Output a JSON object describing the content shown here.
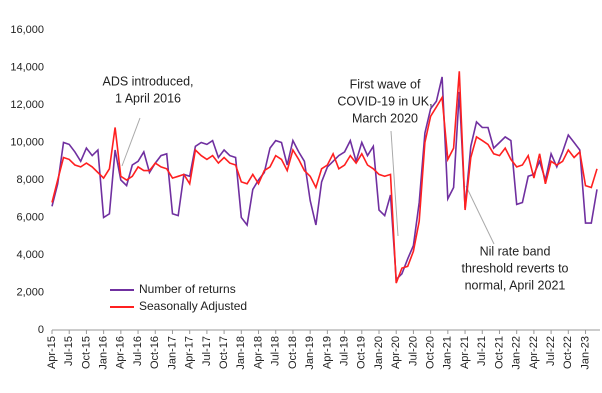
{
  "chart_data": {
    "type": "line",
    "categories": [
      "Apr-15",
      null,
      null,
      "Jul-15",
      null,
      null,
      "Oct-15",
      null,
      null,
      "Jan-16",
      null,
      null,
      "Apr-16",
      null,
      null,
      "Jul-16",
      null,
      null,
      "Oct-16",
      null,
      null,
      "Jan-17",
      null,
      null,
      "Apr-17",
      null,
      null,
      "Jul-17",
      null,
      null,
      "Oct-17",
      null,
      null,
      "Jan-18",
      null,
      null,
      "Apr-18",
      null,
      null,
      "Jul-18",
      null,
      null,
      "Oct-18",
      null,
      null,
      "Jan-19",
      null,
      null,
      "Apr-19",
      null,
      null,
      "Jul-19",
      null,
      null,
      "Oct-19",
      null,
      null,
      "Jan-20",
      null,
      null,
      "Apr-20",
      null,
      null,
      "Jul-20",
      null,
      null,
      "Oct-20",
      null,
      null,
      "Jan-21",
      null,
      null,
      "Apr-21",
      null,
      null,
      "Jul-21",
      null,
      null,
      "Oct-21",
      null,
      null,
      "Jan-22",
      null,
      null,
      "Apr-22",
      null,
      null,
      "Jul-22",
      null,
      null,
      "Oct-22",
      null,
      null,
      "Jan-23",
      null,
      null
    ],
    "series": [
      {
        "name": "Number of returns",
        "color": "#7030a0",
        "values": [
          6600,
          7800,
          10000,
          9900,
          9500,
          9000,
          9700,
          9300,
          9600,
          6000,
          6200,
          9600,
          8000,
          7700,
          8800,
          9000,
          9500,
          8400,
          8900,
          9300,
          9400,
          6200,
          6100,
          8300,
          8200,
          9800,
          10000,
          9900,
          10100,
          9200,
          9600,
          9300,
          9200,
          6000,
          5600,
          7500,
          8000,
          8400,
          9700,
          10100,
          10000,
          8800,
          10100,
          9500,
          9000,
          6900,
          5600,
          7900,
          8700,
          9000,
          9300,
          9500,
          10100,
          9000,
          10000,
          9300,
          9800,
          6400,
          6100,
          7200,
          2700,
          3000,
          3800,
          4500,
          6800,
          10500,
          11800,
          12200,
          13500,
          7000,
          7600,
          12700,
          6500,
          9800,
          11100,
          10800,
          10800,
          9700,
          10000,
          10300,
          10100,
          6700,
          6800,
          8200,
          8300,
          9000,
          8000,
          9400,
          8700,
          9500,
          10400,
          10000,
          9600,
          5700,
          5700,
          7500
        ]
      },
      {
        "name": "Seasonally Adjusted",
        "color": "#ff2020",
        "values": [
          6800,
          8000,
          9200,
          9100,
          8800,
          8700,
          8900,
          8700,
          8400,
          8100,
          8600,
          10800,
          8200,
          8000,
          8200,
          8700,
          8500,
          8500,
          8900,
          8700,
          8600,
          8100,
          8200,
          8300,
          7800,
          9600,
          9300,
          9100,
          9300,
          8900,
          9200,
          8900,
          8800,
          7900,
          7800,
          8300,
          7800,
          8500,
          8700,
          9300,
          9100,
          8500,
          9600,
          9100,
          8500,
          8200,
          7600,
          8600,
          8800,
          9400,
          8600,
          8800,
          9300,
          8900,
          9400,
          8800,
          8600,
          8300,
          8200,
          8300,
          2500,
          3300,
          3400,
          4200,
          5800,
          10000,
          11400,
          11900,
          12400,
          9100,
          9700,
          13800,
          6400,
          9200,
          10300,
          10100,
          9900,
          9400,
          9300,
          9700,
          9100,
          8700,
          8800,
          9300,
          8100,
          9400,
          7800,
          9000,
          8800,
          9000,
          9600,
          9200,
          9500,
          7700,
          7600,
          8600
        ]
      }
    ],
    "ylim": [
      0,
      16000
    ],
    "yticks": [
      0,
      {
        "value": 2000,
        "label": "2,000"
      },
      {
        "value": 4000,
        "label": "4,000"
      },
      {
        "value": 6000,
        "label": "6,000"
      },
      {
        "value": 8000,
        "label": "8,000"
      },
      {
        "value": 10000,
        "label": "10,000"
      },
      {
        "value": 12000,
        "label": "12,000"
      },
      {
        "value": 14000,
        "label": "14,000"
      },
      {
        "value": 16000,
        "label": "16,000"
      }
    ],
    "grid": false,
    "legend": "lower-left",
    "annotations": [
      {
        "lines": [
          "ADS introduced,",
          "1 April 2016"
        ]
      },
      {
        "lines": [
          "First wave of",
          "COVID-19 in UK,",
          "March 2020"
        ]
      },
      {
        "lines": [
          "Nil rate band",
          "threshold reverts to",
          "normal, April 2021"
        ]
      }
    ]
  }
}
